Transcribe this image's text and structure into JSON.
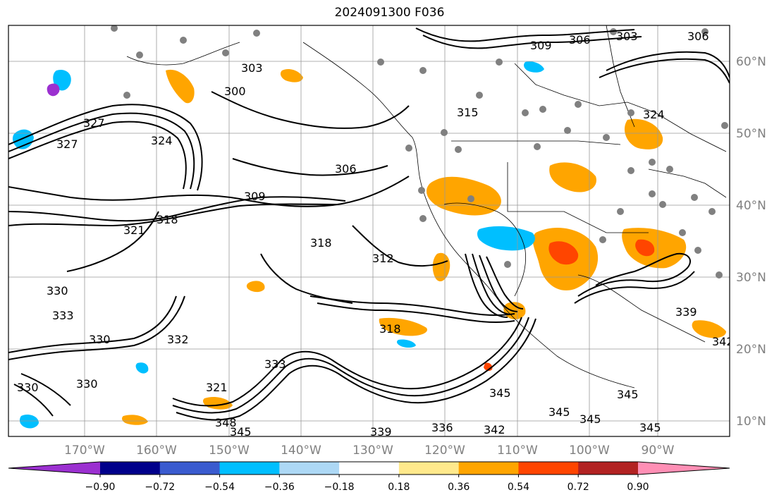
{
  "title": "2024091300 F036",
  "map": {
    "lon_labels": [
      "170°W",
      "160°W",
      "150°W",
      "140°W",
      "130°W",
      "120°W",
      "110°W",
      "100°W",
      "90°W"
    ],
    "lat_labels": [
      "60°N",
      "50°N",
      "40°N",
      "30°N",
      "20°N",
      "10°N"
    ],
    "contour_labels": [
      {
        "text": "303"
      },
      {
        "text": "300"
      },
      {
        "text": "306"
      },
      {
        "text": "309"
      },
      {
        "text": "306"
      },
      {
        "text": "303"
      },
      {
        "text": "306"
      },
      {
        "text": "309"
      },
      {
        "text": "318"
      },
      {
        "text": "321"
      },
      {
        "text": "318"
      },
      {
        "text": "312"
      },
      {
        "text": "315"
      },
      {
        "text": "324"
      },
      {
        "text": "327"
      },
      {
        "text": "327"
      },
      {
        "text": "330"
      },
      {
        "text": "333"
      },
      {
        "text": "330"
      },
      {
        "text": "330"
      },
      {
        "text": "332"
      },
      {
        "text": "321"
      },
      {
        "text": "333"
      },
      {
        "text": "348"
      },
      {
        "text": "345"
      },
      {
        "text": "339"
      },
      {
        "text": "336"
      },
      {
        "text": "342"
      },
      {
        "text": "345"
      },
      {
        "text": "345"
      },
      {
        "text": "345"
      },
      {
        "text": "345"
      },
      {
        "text": "345"
      },
      {
        "text": "318"
      },
      {
        "text": "324"
      },
      {
        "text": "339"
      },
      {
        "text": "342"
      },
      {
        "text": "330"
      }
    ]
  },
  "colorbar": {
    "ticks": [
      "−0.90",
      "−0.72",
      "−0.54",
      "−0.36",
      "−0.18",
      "0.18",
      "0.36",
      "0.54",
      "0.72",
      "0.90"
    ],
    "colors": [
      "#9b30d0",
      "#00008b",
      "#3a5bcf",
      "#00bfff",
      "#add8f5",
      "#ffffff",
      "#ffe98c",
      "#ffa500",
      "#ff4500",
      "#b22222",
      "#ff8fb5"
    ]
  }
}
